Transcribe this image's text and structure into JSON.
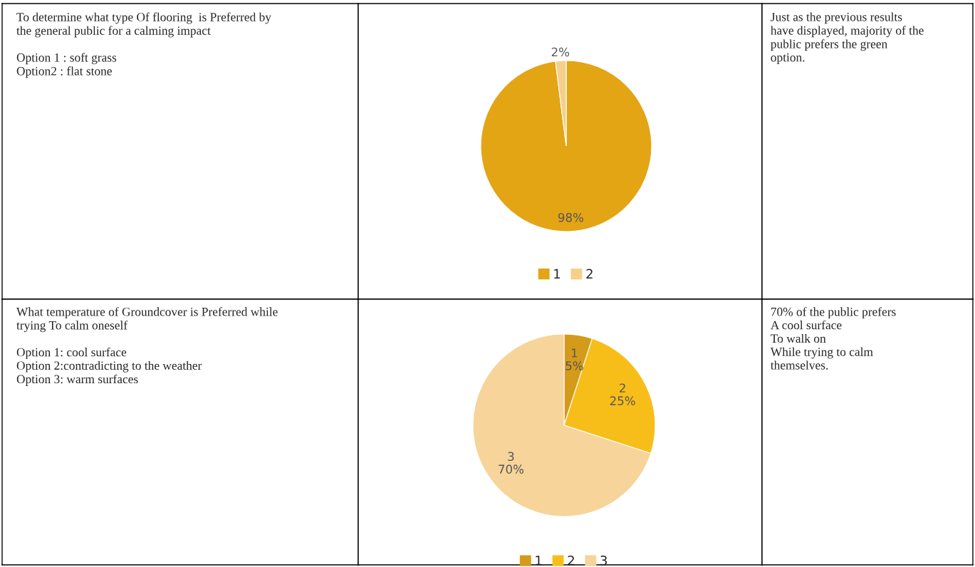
{
  "chart_data": [
    {
      "type": "other",
      "annotations": [
        "To determine what type Of flooring  is Preferred by\nthe general public for a calming impact",
        "Option 1 : soft grass\nOption2 : flat stone"
      ]
    },
    {
      "type": "pie",
      "categories": [
        "1",
        "2"
      ],
      "values": [
        98,
        2
      ],
      "value_labels": [
        "98%",
        "2%"
      ],
      "colors": [
        "#e3a514",
        "#f5d08a"
      ],
      "legend": "bottom"
    },
    {
      "type": "other",
      "annotations": [
        "Just as the previous results\nhave displayed, majority of the\npublic prefers the green\noption."
      ]
    },
    {
      "type": "other",
      "annotations": [
        "What temperature of Groundcover is Preferred while\ntrying To calm oneself",
        "Option 1: cool surface\nOption 2:contradicting to the weather\nOption 3: warm surfaces"
      ]
    },
    {
      "type": "pie",
      "categories": [
        "1",
        "2",
        "3"
      ],
      "values": [
        5,
        25,
        70
      ],
      "value_labels": [
        "5%",
        "25%",
        "70%"
      ],
      "colors": [
        "#d49a1a",
        "#f7be1a",
        "#f6d49a"
      ],
      "legend": "bottom"
    },
    {
      "type": "other",
      "annotations": [
        "70% of the public prefers\nA cool surface\nTo walk on\nWhile trying to calm\nthemselves."
      ]
    }
  ]
}
